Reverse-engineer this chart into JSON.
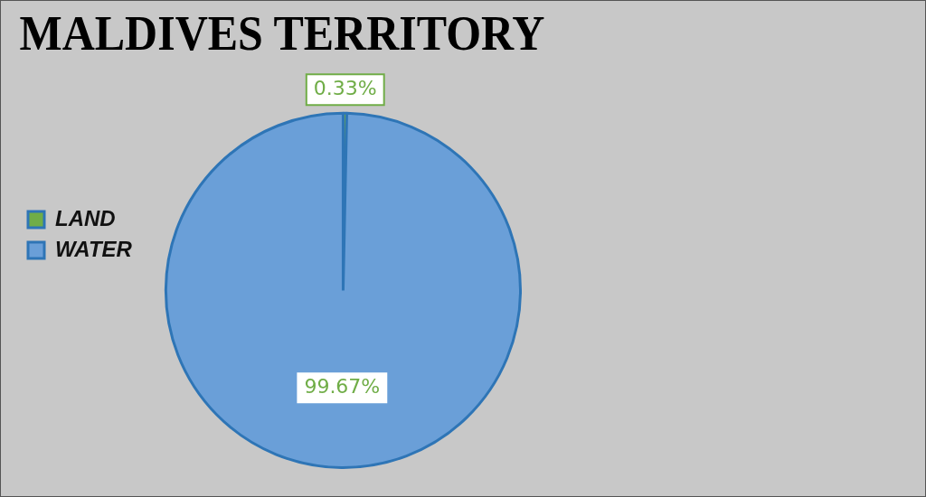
{
  "chart_data": {
    "type": "pie",
    "title": "MALDIVES TERRITORY",
    "categories": [
      "LAND",
      "WATER"
    ],
    "values": [
      0.33,
      99.67
    ],
    "colors": [
      "#70ad47",
      "#6a9fd8"
    ],
    "value_labels": [
      "0.33%",
      "99.67%"
    ],
    "legend": "left"
  }
}
